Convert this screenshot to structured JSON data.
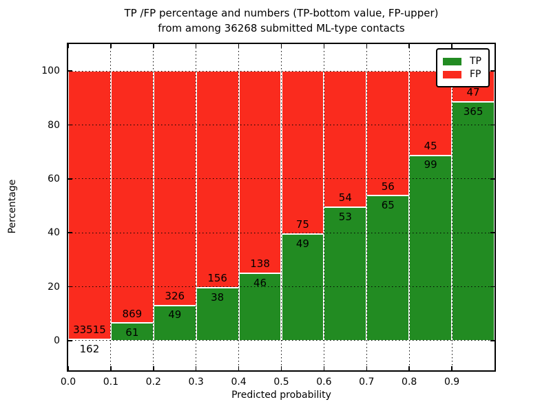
{
  "title": {
    "line1": "TP /FP percentage and numbers (TP-bottom value, FP-upper)",
    "line2": "from among 36268 submitted ML-type contacts"
  },
  "axes": {
    "xlabel": "Predicted probability",
    "ylabel": "Percentage",
    "xticklabels": [
      "0.0",
      "0.1",
      "0.2",
      "0.3",
      "0.4",
      "0.5",
      "0.6",
      "0.7",
      "0.8",
      "0.9"
    ],
    "yticks": [
      0,
      20,
      40,
      60,
      80,
      100
    ],
    "yticklabels": [
      "0",
      "20",
      "40",
      "60",
      "80",
      "100"
    ]
  },
  "legend": {
    "position": "upper right",
    "items": [
      {
        "label": "TP",
        "color": "#228B22"
      },
      {
        "label": "FP",
        "color": "#FA2B1E"
      }
    ]
  },
  "chart_data": {
    "type": "bar",
    "stacked": true,
    "normalized_to": "100% per bar (values shown are raw counts)",
    "title": "TP /FP percentage and numbers (TP-bottom value, FP-upper) from among 36268 submitted ML-type contacts",
    "xlabel": "Predicted probability",
    "ylabel": "Percentage",
    "total_contacts": 36268,
    "bins": [
      "0.0-0.1",
      "0.1-0.2",
      "0.2-0.3",
      "0.3-0.4",
      "0.4-0.5",
      "0.5-0.6",
      "0.6-0.7",
      "0.7-0.8",
      "0.8-0.9",
      "0.9-1.0"
    ],
    "series": [
      {
        "name": "TP",
        "color": "#228B22",
        "values": [
          162,
          61,
          49,
          38,
          46,
          49,
          53,
          65,
          99,
          365
        ]
      },
      {
        "name": "FP",
        "color": "#FA2B1E",
        "values": [
          33515,
          869,
          326,
          156,
          138,
          75,
          54,
          56,
          45,
          47
        ]
      }
    ],
    "tp_percent": [
      0.48,
      6.56,
      13.07,
      19.59,
      25.0,
      39.52,
      49.53,
      53.72,
      68.75,
      88.59
    ],
    "xlim": [
      0.0,
      1.0
    ],
    "ylim": [
      -11,
      110
    ],
    "grid": true,
    "grid_style": "dotted",
    "legend_position": "upper right"
  }
}
